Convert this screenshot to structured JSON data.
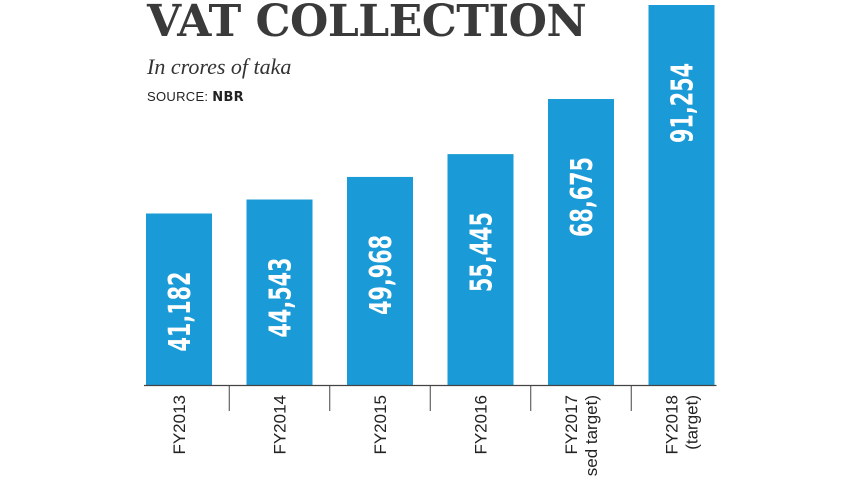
{
  "chart_data": {
    "type": "bar",
    "title": "VAT COLLECTION",
    "subtitle": "In crores of taka",
    "source_label": "SOURCE:",
    "source_name": "NBR",
    "categories": [
      [
        "FY2013"
      ],
      [
        "FY2014"
      ],
      [
        "FY2015"
      ],
      [
        "FY2016"
      ],
      [
        "FY2017",
        "sed target)"
      ],
      [
        "FY2018",
        "(target)"
      ]
    ],
    "values": [
      41182,
      44543,
      49968,
      55445,
      68675,
      91254
    ],
    "value_labels": [
      "41,182",
      "44,543",
      "49,968",
      "55,445",
      "68,675",
      "91,254"
    ],
    "ylim": [
      0,
      100000
    ],
    "grid": false,
    "bar_color": "#1a9ad6",
    "label_color": "#ffffff",
    "text_color": "#222222"
  }
}
